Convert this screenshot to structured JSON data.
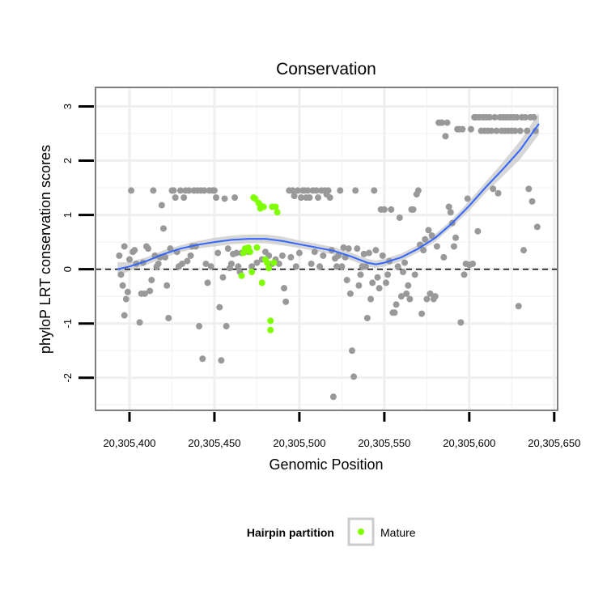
{
  "chart_data": {
    "type": "scatter",
    "title": "Conservation",
    "xlabel": "Genomic Position",
    "ylabel": "phyloP LRT conservation scores",
    "xlim": [
      20305380,
      20305652
    ],
    "ylim": [
      -2.6,
      3.35
    ],
    "x_ticks": [
      20305400,
      20305450,
      20305500,
      20305550,
      20305600,
      20305650
    ],
    "x_tick_labels": [
      "20,305,400",
      "20,305,450",
      "20,305,500",
      "20,305,550",
      "20,305,600",
      "20,305,650"
    ],
    "y_ticks": [
      -2,
      -1,
      0,
      1,
      2,
      3
    ],
    "y_tick_labels": [
      "-2",
      "-1",
      "0",
      "1",
      "2",
      "3"
    ],
    "grid": true,
    "reference_line": {
      "y": 0,
      "style": "dashed"
    },
    "legend": {
      "title": "Hairpin partition",
      "entries": [
        {
          "label": "Mature",
          "color": "#7fff00"
        }
      ],
      "placement": "bottom"
    },
    "colors": {
      "background_points": "#999999",
      "mature_points": "#7fff00",
      "smooth_line": "#3366ff",
      "ribbon": "#cccccc"
    },
    "series": [
      {
        "name": "Background",
        "color": "#999999",
        "points": [
          [
            20305394,
            0.25
          ],
          [
            20305395,
            -0.1
          ],
          [
            20305396,
            -0.3
          ],
          [
            20305397,
            0.42
          ],
          [
            20305397,
            -0.85
          ],
          [
            20305398,
            -0.55
          ],
          [
            20305399,
            -0.42
          ],
          [
            20305400,
            0.18
          ],
          [
            20305401,
            1.45
          ],
          [
            20305402,
            0.32
          ],
          [
            20305403,
            0.35
          ],
          [
            20305404,
            0.1
          ],
          [
            20305406,
            -0.98
          ],
          [
            20305407,
            -0.45
          ],
          [
            20305408,
            0.12
          ],
          [
            20305409,
            -0.45
          ],
          [
            20305410,
            0.42
          ],
          [
            20305411,
            0.38
          ],
          [
            20305412,
            -0.4
          ],
          [
            20305413,
            -0.2
          ],
          [
            20305414,
            1.45
          ],
          [
            20305415,
            0.25
          ],
          [
            20305416,
            0.05
          ],
          [
            20305417,
            0.1
          ],
          [
            20305418,
            0.22
          ],
          [
            20305419,
            1.18
          ],
          [
            20305420,
            0.75
          ],
          [
            20305421,
            0.22
          ],
          [
            20305422,
            -0.3
          ],
          [
            20305423,
            -0.9
          ],
          [
            20305424,
            0.38
          ],
          [
            20305425,
            1.45
          ],
          [
            20305426,
            1.45
          ],
          [
            20305427,
            1.32
          ],
          [
            20305428,
            0.32
          ],
          [
            20305429,
            0.05
          ],
          [
            20305430,
            1.45
          ],
          [
            20305431,
            0.1
          ],
          [
            20305432,
            1.32
          ],
          [
            20305433,
            1.45
          ],
          [
            20305434,
            0.15
          ],
          [
            20305435,
            1.45
          ],
          [
            20305436,
            0.25
          ],
          [
            20305437,
            0.42
          ],
          [
            20305438,
            1.45
          ],
          [
            20305439,
            0.42
          ],
          [
            20305440,
            1.45
          ],
          [
            20305441,
            -1.05
          ],
          [
            20305442,
            1.45
          ],
          [
            20305443,
            -1.65
          ],
          [
            20305444,
            1.45
          ],
          [
            20305445,
            0.1
          ],
          [
            20305446,
            -0.25
          ],
          [
            20305447,
            1.45
          ],
          [
            20305448,
            0.05
          ],
          [
            20305449,
            1.45
          ],
          [
            20305450,
            1.45
          ],
          [
            20305451,
            1.32
          ],
          [
            20305452,
            0.3
          ],
          [
            20305453,
            -0.7
          ],
          [
            20305454,
            -1.68
          ],
          [
            20305455,
            -0.15
          ],
          [
            20305456,
            1.3
          ],
          [
            20305457,
            -1.05
          ],
          [
            20305458,
            0.38
          ],
          [
            20305459,
            0.02
          ],
          [
            20305460,
            0.1
          ],
          [
            20305461,
            0.28
          ],
          [
            20305462,
            1.32
          ],
          [
            20305463,
            0.3
          ],
          [
            20305464,
            0.05
          ],
          [
            20305465,
            -0.05
          ],
          [
            20305466,
            0.3
          ],
          [
            20305468,
            0.35
          ],
          [
            20305470,
            0.32
          ],
          [
            20305472,
            0.05
          ],
          [
            20305475,
            0.12
          ],
          [
            20305478,
            0.18
          ],
          [
            20305480,
            0.32
          ],
          [
            20305482,
            0.25
          ],
          [
            20305484,
            0.1
          ],
          [
            20305486,
            0.18
          ],
          [
            20305488,
            0.1
          ],
          [
            20305490,
            0.25
          ],
          [
            20305491,
            -0.35
          ],
          [
            20305492,
            -0.6
          ],
          [
            20305494,
            1.45
          ],
          [
            20305495,
            0.22
          ],
          [
            20305496,
            1.45
          ],
          [
            20305497,
            1.35
          ],
          [
            20305498,
            0.05
          ],
          [
            20305499,
            1.45
          ],
          [
            20305500,
            0.3
          ],
          [
            20305501,
            1.32
          ],
          [
            20305502,
            1.45
          ],
          [
            20305503,
            1.45
          ],
          [
            20305504,
            1.32
          ],
          [
            20305505,
            1.45
          ],
          [
            20305506,
            1.32
          ],
          [
            20305507,
            0.1
          ],
          [
            20305508,
            1.45
          ],
          [
            20305509,
            0.32
          ],
          [
            20305510,
            1.45
          ],
          [
            20305511,
            1.32
          ],
          [
            20305512,
            0.05
          ],
          [
            20305513,
            1.45
          ],
          [
            20305514,
            0.25
          ],
          [
            20305515,
            1.45
          ],
          [
            20305516,
            1.38
          ],
          [
            20305517,
            1.45
          ],
          [
            20305518,
            1.32
          ],
          [
            20305519,
            0.35
          ],
          [
            20305520,
            -2.35
          ],
          [
            20305521,
            0.2
          ],
          [
            20305522,
            0.05
          ],
          [
            20305523,
            0.25
          ],
          [
            20305524,
            1.45
          ],
          [
            20305525,
            0.05
          ],
          [
            20305526,
            0.4
          ],
          [
            20305527,
            0.22
          ],
          [
            20305528,
            -0.2
          ],
          [
            20305529,
            0.38
          ],
          [
            20305530,
            -0.45
          ],
          [
            20305531,
            -1.5
          ],
          [
            20305532,
            -1.98
          ],
          [
            20305533,
            1.45
          ],
          [
            20305534,
            0.38
          ],
          [
            20305535,
            -0.3
          ],
          [
            20305536,
            -0.1
          ],
          [
            20305537,
            0.05
          ],
          [
            20305538,
            0.28
          ],
          [
            20305539,
            0.05
          ],
          [
            20305540,
            -0.9
          ],
          [
            20305541,
            0.3
          ],
          [
            20305542,
            -0.55
          ],
          [
            20305543,
            -0.25
          ],
          [
            20305544,
            1.45
          ],
          [
            20305545,
            0.35
          ],
          [
            20305546,
            -0.15
          ],
          [
            20305547,
            -0.35
          ],
          [
            20305548,
            1.1
          ],
          [
            20305549,
            0.25
          ],
          [
            20305550,
            1.1
          ],
          [
            20305551,
            -0.25
          ],
          [
            20305552,
            -0.1
          ],
          [
            20305553,
            0.15
          ],
          [
            20305554,
            1.1
          ],
          [
            20305555,
            -0.8
          ],
          [
            20305556,
            -0.8
          ],
          [
            20305557,
            -0.65
          ],
          [
            20305558,
            0.05
          ],
          [
            20305559,
            0.95
          ],
          [
            20305560,
            -0.5
          ],
          [
            20305561,
            -0.05
          ],
          [
            20305562,
            0.12
          ],
          [
            20305563,
            -0.45
          ],
          [
            20305564,
            -0.3
          ],
          [
            20305565,
            -0.55
          ],
          [
            20305566,
            1.1
          ],
          [
            20305567,
            1.1
          ],
          [
            20305568,
            -0.1
          ],
          [
            20305569,
            1.38
          ],
          [
            20305570,
            1.45
          ],
          [
            20305571,
            0.45
          ],
          [
            20305572,
            -0.82
          ],
          [
            20305573,
            0.35
          ],
          [
            20305574,
            0.55
          ],
          [
            20305575,
            -0.55
          ],
          [
            20305576,
            0.72
          ],
          [
            20305577,
            -0.45
          ],
          [
            20305578,
            0.62
          ],
          [
            20305579,
            -0.55
          ],
          [
            20305580,
            -0.5
          ],
          [
            20305581,
            0.42
          ],
          [
            20305582,
            2.7
          ],
          [
            20305583,
            2.7
          ],
          [
            20305584,
            2.7
          ],
          [
            20305585,
            0.22
          ],
          [
            20305586,
            2.45
          ],
          [
            20305587,
            2.7
          ],
          [
            20305588,
            1.15
          ],
          [
            20305589,
            1.05
          ],
          [
            20305590,
            0.85
          ],
          [
            20305591,
            0.42
          ],
          [
            20305592,
            0.58
          ],
          [
            20305593,
            2.58
          ],
          [
            20305594,
            2.58
          ],
          [
            20305595,
            -0.98
          ],
          [
            20305596,
            2.58
          ],
          [
            20305597,
            -0.1
          ],
          [
            20305598,
            0.1
          ],
          [
            20305599,
            1.3
          ],
          [
            20305600,
            0.08
          ],
          [
            20305601,
            2.58
          ],
          [
            20305602,
            0.1
          ],
          [
            20305603,
            2.8
          ],
          [
            20305604,
            2.8
          ],
          [
            20305605,
            0.7
          ],
          [
            20305606,
            2.8
          ],
          [
            20305607,
            2.55
          ],
          [
            20305608,
            2.8
          ],
          [
            20305609,
            2.55
          ],
          [
            20305610,
            2.8
          ],
          [
            20305611,
            2.55
          ],
          [
            20305612,
            2.8
          ],
          [
            20305613,
            2.55
          ],
          [
            20305614,
            1.48
          ],
          [
            20305615,
            2.8
          ],
          [
            20305616,
            2.55
          ],
          [
            20305617,
            1.4
          ],
          [
            20305618,
            2.8
          ],
          [
            20305619,
            2.55
          ],
          [
            20305620,
            2.8
          ],
          [
            20305621,
            2.55
          ],
          [
            20305622,
            2.8
          ],
          [
            20305623,
            2.55
          ],
          [
            20305624,
            2.8
          ],
          [
            20305625,
            2.55
          ],
          [
            20305626,
            2.8
          ],
          [
            20305627,
            2.55
          ],
          [
            20305628,
            2.8
          ],
          [
            20305629,
            -0.68
          ],
          [
            20305630,
            2.55
          ],
          [
            20305631,
            2.8
          ],
          [
            20305632,
            0.35
          ],
          [
            20305633,
            2.8
          ],
          [
            20305634,
            2.55
          ],
          [
            20305635,
            1.48
          ],
          [
            20305636,
            2.8
          ],
          [
            20305637,
            1.25
          ],
          [
            20305638,
            2.8
          ],
          [
            20305639,
            2.55
          ],
          [
            20305640,
            0.78
          ]
        ]
      },
      {
        "name": "Mature",
        "color": "#7fff00",
        "points": [
          [
            20305466,
            -0.12
          ],
          [
            20305467,
            0.3
          ],
          [
            20305468,
            0.38
          ],
          [
            20305469,
            0.35
          ],
          [
            20305470,
            0.4
          ],
          [
            20305471,
            0.32
          ],
          [
            20305472,
            -0.05
          ],
          [
            20305473,
            1.32
          ],
          [
            20305474,
            1.3
          ],
          [
            20305475,
            0.4
          ],
          [
            20305476,
            1.22
          ],
          [
            20305477,
            1.18
          ],
          [
            20305477,
            1.12
          ],
          [
            20305478,
            -0.25
          ],
          [
            20305479,
            1.15
          ],
          [
            20305480,
            0.18
          ],
          [
            20305481,
            0.12
          ],
          [
            20305482,
            0.02
          ],
          [
            20305483,
            -0.95
          ],
          [
            20305483,
            -1.12
          ],
          [
            20305484,
            1.15
          ],
          [
            20305485,
            0.12
          ],
          [
            20305486,
            1.15
          ],
          [
            20305487,
            1.05
          ]
        ]
      }
    ],
    "smooth": {
      "method": "loess",
      "x": [
        20305393,
        20305400,
        20305410,
        20305420,
        20305430,
        20305440,
        20305450,
        20305460,
        20305470,
        20305480,
        20305490,
        20305500,
        20305510,
        20305520,
        20305530,
        20305540,
        20305545,
        20305550,
        20305560,
        20305570,
        20305580,
        20305590,
        20305600,
        20305610,
        20305620,
        20305630,
        20305641
      ],
      "y": [
        0.0,
        0.05,
        0.15,
        0.28,
        0.38,
        0.45,
        0.5,
        0.54,
        0.56,
        0.56,
        0.52,
        0.46,
        0.4,
        0.34,
        0.24,
        0.12,
        0.09,
        0.12,
        0.22,
        0.38,
        0.58,
        0.85,
        1.17,
        1.52,
        1.85,
        2.2,
        2.68
      ],
      "ribbon_lower": [
        -0.13,
        -0.03,
        0.08,
        0.21,
        0.32,
        0.38,
        0.42,
        0.46,
        0.48,
        0.48,
        0.44,
        0.39,
        0.33,
        0.27,
        0.17,
        0.05,
        0.02,
        0.05,
        0.15,
        0.31,
        0.51,
        0.78,
        1.08,
        1.42,
        1.72,
        2.03,
        2.48
      ],
      "ribbon_upper": [
        0.13,
        0.13,
        0.22,
        0.35,
        0.44,
        0.52,
        0.58,
        0.62,
        0.64,
        0.64,
        0.6,
        0.53,
        0.47,
        0.41,
        0.31,
        0.19,
        0.16,
        0.19,
        0.29,
        0.45,
        0.65,
        0.92,
        1.26,
        1.62,
        1.98,
        2.37,
        2.88
      ]
    }
  }
}
